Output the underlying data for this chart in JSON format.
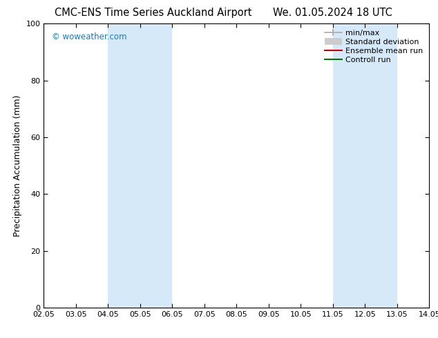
{
  "title_left": "CMC-ENS Time Series Auckland Airport",
  "title_right": "We. 01.05.2024 18 UTC",
  "ylabel": "Precipitation Accumulation (mm)",
  "watermark": "© woweather.com",
  "watermark_color": "#1a7ac8",
  "ylim": [
    0,
    100
  ],
  "yticks": [
    0,
    20,
    40,
    60,
    80,
    100
  ],
  "x_tick_labels": [
    "02.05",
    "03.05",
    "04.05",
    "05.05",
    "06.05",
    "07.05",
    "08.05",
    "09.05",
    "10.05",
    "11.05",
    "12.05",
    "13.05",
    "14.05"
  ],
  "x_tick_positions": [
    0,
    1,
    2,
    3,
    4,
    5,
    6,
    7,
    8,
    9,
    10,
    11,
    12
  ],
  "shaded_bands": [
    {
      "x_start": 2,
      "x_end": 4,
      "color": "#d6e9f8"
    },
    {
      "x_start": 9,
      "x_end": 11,
      "color": "#d6e9f8"
    }
  ],
  "legend_items": [
    {
      "label": "min/max",
      "color": "#aaaaaa",
      "lw": 1.2
    },
    {
      "label": "Standard deviation",
      "color": "#cccccc",
      "lw": 7
    },
    {
      "label": "Ensemble mean run",
      "color": "#cc0000",
      "lw": 1.5
    },
    {
      "label": "Controll run",
      "color": "#007700",
      "lw": 1.5
    }
  ],
  "background_color": "#ffffff",
  "plot_bg_color": "#ffffff",
  "title_fontsize": 10.5,
  "tick_fontsize": 8,
  "ylabel_fontsize": 9,
  "legend_fontsize": 8
}
